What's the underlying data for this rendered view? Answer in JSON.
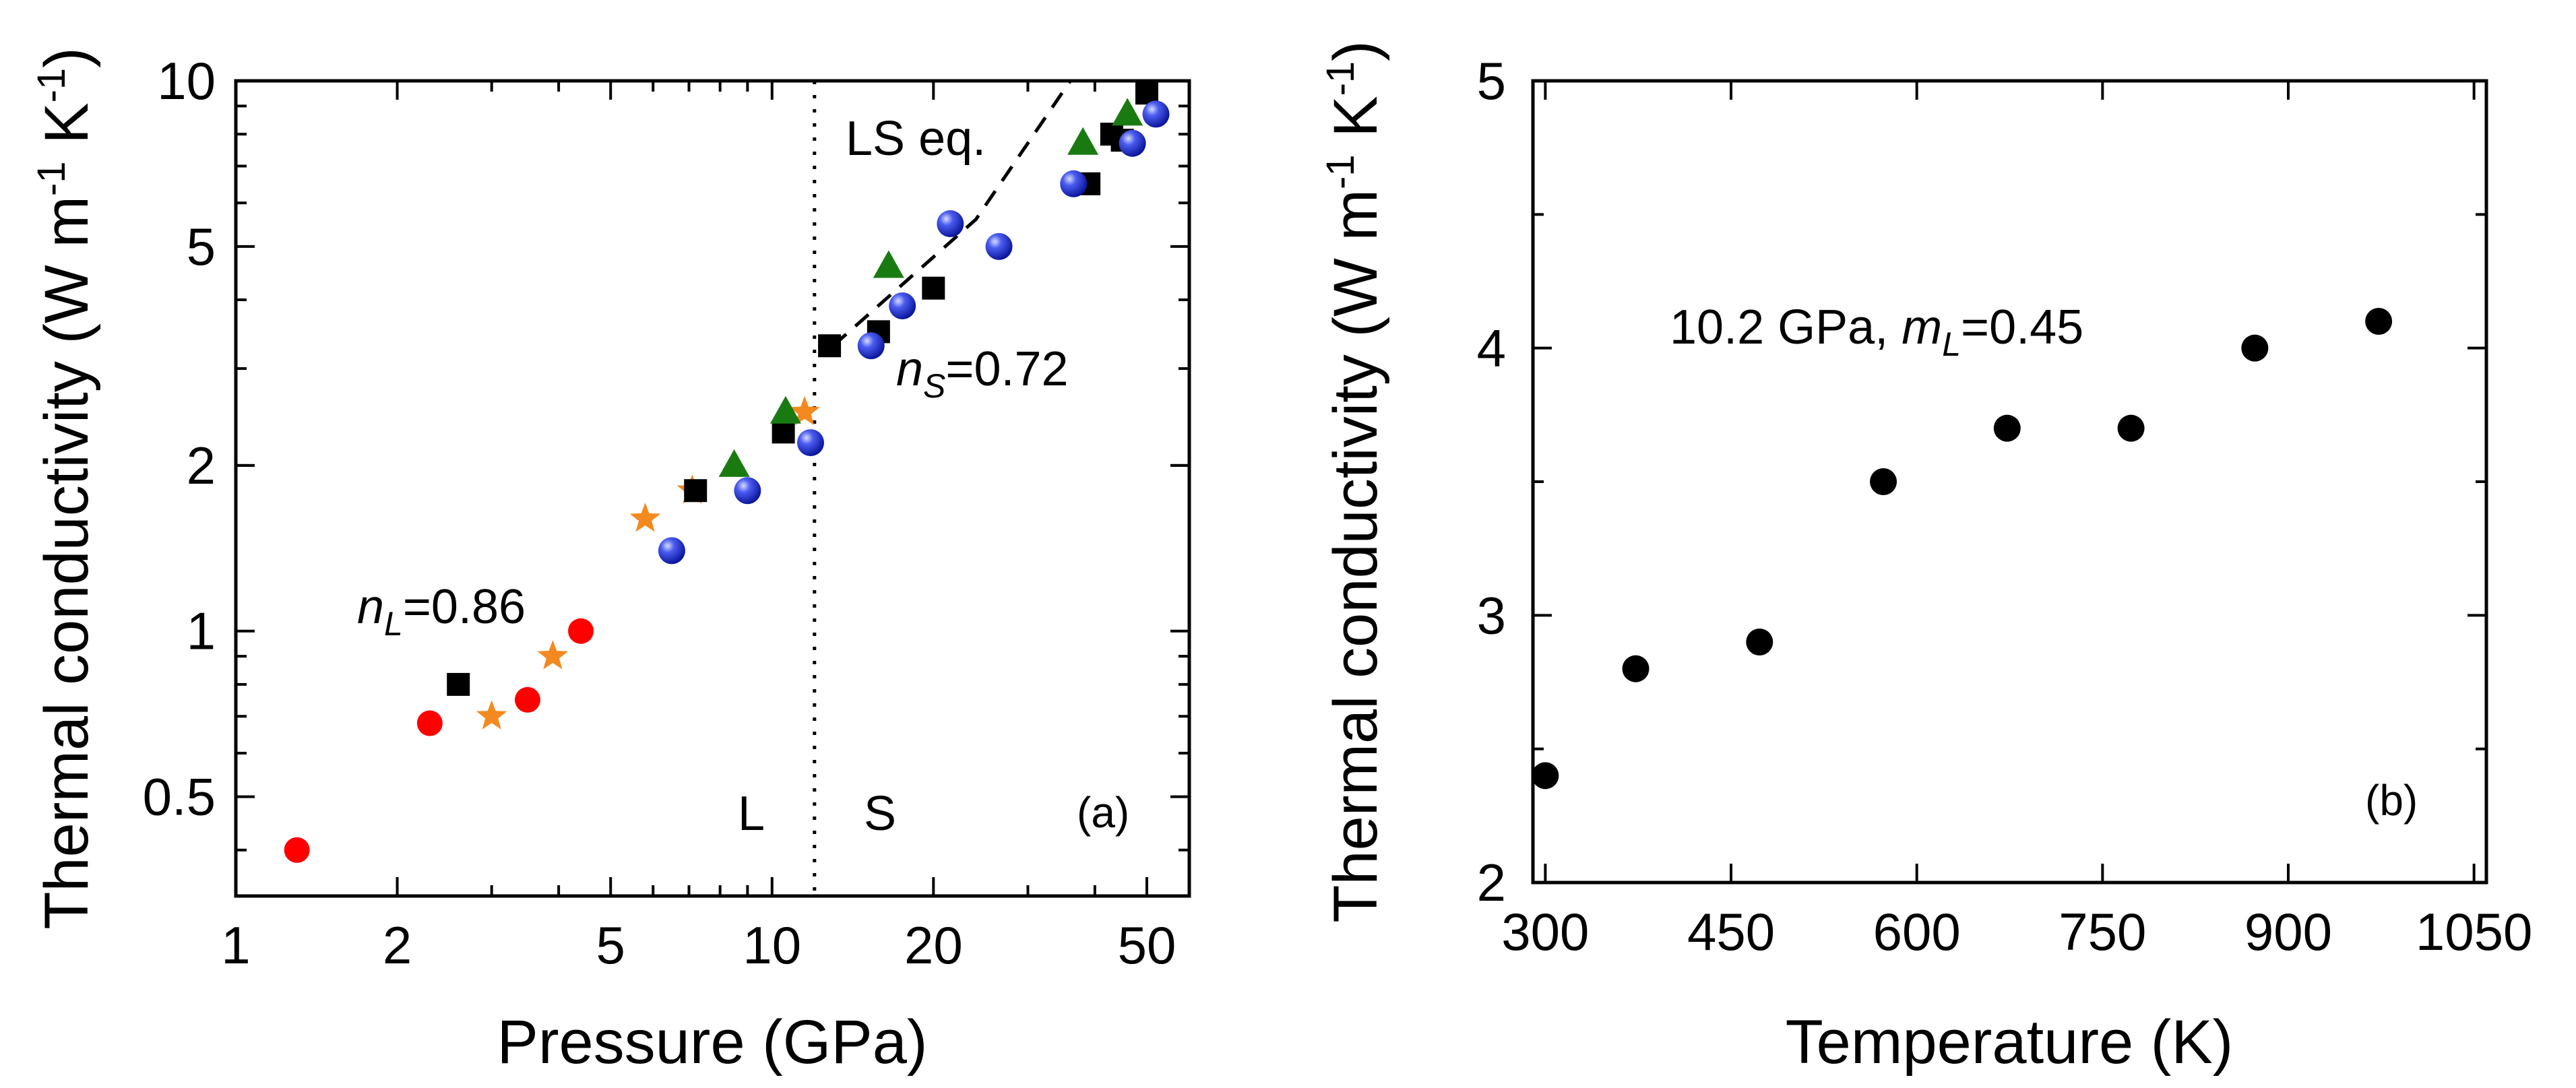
{
  "chart_data": [
    {
      "panel": "(a)",
      "type": "scatter",
      "xscale": "log",
      "yscale": "log",
      "xlabel": "Pressure (GPa)",
      "ylabel_main": "Thermal conductivity (W m",
      "ylabel_sup1": "-1",
      "ylabel_mid": " K",
      "ylabel_sup2": "-1",
      "ylabel_end": ")",
      "xlim": [
        1,
        60
      ],
      "ylim": [
        0.33,
        10
      ],
      "xticks": [
        1,
        2,
        5,
        10,
        20,
        50
      ],
      "xtick_labels": [
        "1",
        "2",
        "5",
        "10",
        "20",
        "50"
      ],
      "yticks": [
        0.5,
        1,
        2,
        5,
        10
      ],
      "ytick_labels": [
        "0.5",
        "1",
        "2",
        "5",
        "10"
      ],
      "series": [
        {
          "name": "red circles",
          "marker": "circle",
          "color": "#ff0000",
          "points": [
            [
              1.3,
              0.4
            ],
            [
              2.3,
              0.68
            ],
            [
              3.5,
              0.75
            ],
            [
              4.4,
              1.0
            ]
          ]
        },
        {
          "name": "orange stars",
          "marker": "star",
          "color": "#f4891f",
          "points": [
            [
              3.0,
              0.7
            ],
            [
              3.9,
              0.9
            ],
            [
              5.8,
              1.6
            ],
            [
              7.1,
              1.8
            ],
            [
              11.5,
              2.5
            ]
          ]
        },
        {
          "name": "black squares",
          "marker": "square",
          "color": "#000000",
          "points": [
            [
              2.6,
              0.8
            ],
            [
              7.2,
              1.8
            ],
            [
              10.5,
              2.3
            ],
            [
              12.8,
              3.3
            ],
            [
              15.8,
              3.5
            ],
            [
              20.0,
              4.2
            ],
            [
              39.0,
              6.5
            ],
            [
              43.0,
              8.0
            ],
            [
              45.0,
              7.8
            ],
            [
              50.0,
              9.5
            ]
          ]
        },
        {
          "name": "green triangles",
          "marker": "triangle",
          "color": "#1a7a12",
          "points": [
            [
              8.5,
              2.0
            ],
            [
              10.6,
              2.5
            ],
            [
              16.5,
              4.6
            ],
            [
              38.0,
              7.7
            ],
            [
              46.0,
              8.7
            ]
          ]
        },
        {
          "name": "blue spheres",
          "marker": "sphere",
          "color": "#2233dd",
          "points": [
            [
              6.5,
              1.4
            ],
            [
              9.0,
              1.8
            ],
            [
              11.8,
              2.2
            ],
            [
              15.3,
              3.3
            ],
            [
              17.5,
              3.9
            ],
            [
              21.5,
              5.5
            ],
            [
              26.5,
              5.0
            ],
            [
              36.5,
              6.5
            ],
            [
              47.0,
              7.7
            ],
            [
              52.0,
              8.7
            ]
          ]
        }
      ],
      "dashed_line": {
        "label": "LS eq.",
        "points": [
          [
            13.0,
            3.3
          ],
          [
            24.0,
            5.6
          ],
          [
            36.0,
            10.0
          ]
        ]
      },
      "dotted_vline_x": 12.0,
      "annotations": {
        "ls_eq": "LS eq.",
        "nL_letter": "n",
        "nL_sub": "L",
        "nL_value": "=0.86",
        "nS_letter": "n",
        "nS_sub": "S",
        "nS_value": "=0.72",
        "region_L": "L",
        "region_S": "S"
      }
    },
    {
      "panel": "(b)",
      "type": "scatter",
      "xlabel": "Temperature (K)",
      "ylabel_main": "Thermal conductivity (W m",
      "ylabel_sup1": "-1",
      "ylabel_mid": " K",
      "ylabel_sup2": "-1",
      "ylabel_end": ")",
      "xlim": [
        290,
        1060
      ],
      "ylim": [
        2,
        5
      ],
      "xticks": [
        300,
        450,
        600,
        750,
        900,
        1050
      ],
      "xtick_labels": [
        "300",
        "450",
        "600",
        "750",
        "900",
        "1050"
      ],
      "yticks": [
        2,
        3,
        4,
        5
      ],
      "ytick_labels": [
        "2",
        "3",
        "4",
        "5"
      ],
      "series": [
        {
          "name": "10.2 GPa",
          "marker": "circle",
          "color": "#000000",
          "points": [
            [
              300,
              2.4
            ],
            [
              373,
              2.8
            ],
            [
              473,
              2.9
            ],
            [
              573,
              3.5
            ],
            [
              673,
              3.7
            ],
            [
              773,
              3.7
            ],
            [
              873,
              4.0
            ],
            [
              973,
              4.1
            ]
          ]
        }
      ],
      "annotations": {
        "pressure_text": "10.2 GPa, ",
        "mL_letter": "m",
        "mL_sub": "L",
        "mL_value": "=0.45"
      }
    }
  ]
}
